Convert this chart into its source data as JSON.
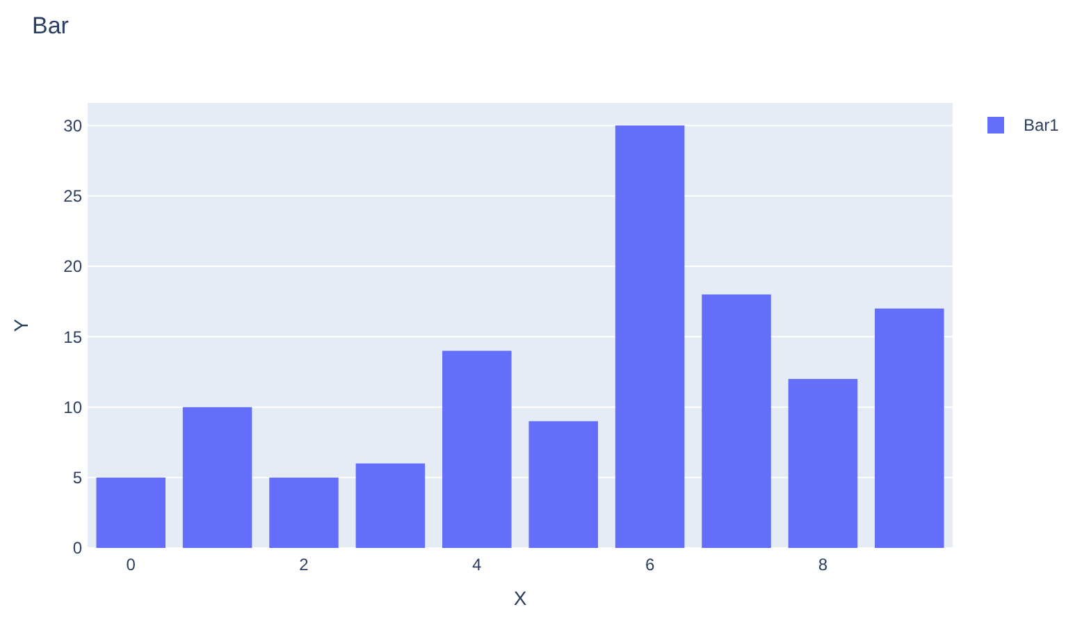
{
  "chart_data": {
    "type": "bar",
    "title": "Bar",
    "xlabel": "X",
    "ylabel": "Y",
    "x": [
      0,
      1,
      2,
      3,
      4,
      5,
      6,
      7,
      8,
      9
    ],
    "series": [
      {
        "name": "Bar1",
        "color": "#636efa",
        "values": [
          5,
          10,
          5,
          6,
          14,
          9,
          30,
          18,
          12,
          17
        ]
      }
    ],
    "xlim": [
      -0.5,
      9.5
    ],
    "xticks": [
      0,
      2,
      4,
      6,
      8
    ],
    "ylim": [
      0,
      31.6
    ],
    "yticks": [
      0,
      5,
      10,
      15,
      20,
      25,
      30
    ],
    "grid": "y",
    "legend": "top right"
  }
}
